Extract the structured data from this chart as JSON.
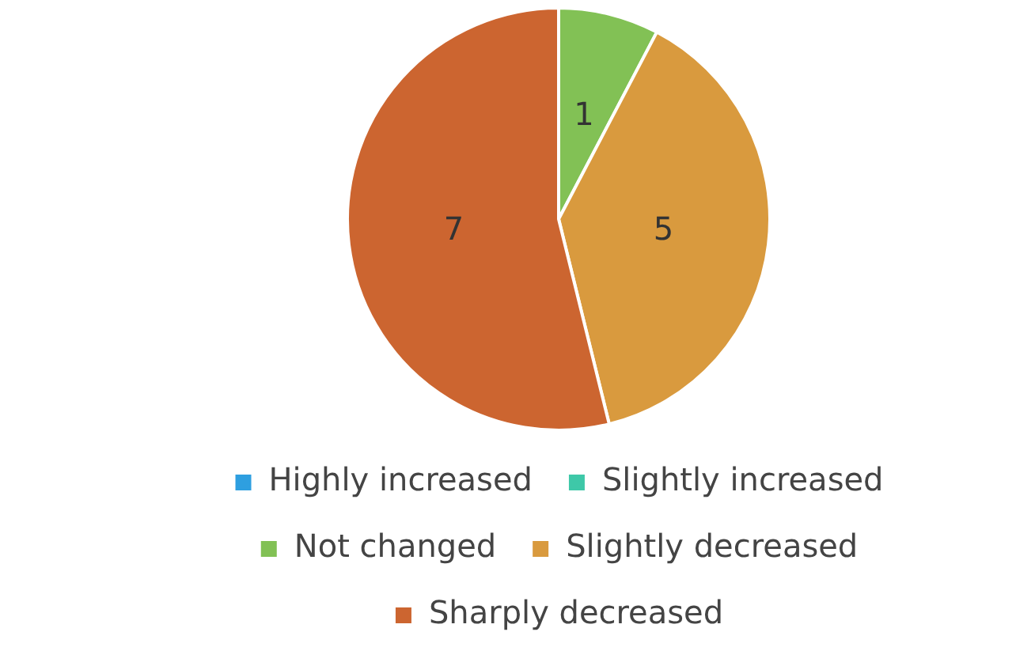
{
  "chart_data": {
    "type": "pie",
    "categories": [
      "Highly increased",
      "Slightly increased",
      "Not changed",
      "Slightly decreased",
      "Sharply decreased"
    ],
    "values": [
      0,
      0,
      1,
      5,
      7
    ],
    "colors": [
      "#2e9fe0",
      "#3ec8a8",
      "#82c155",
      "#d99a3e",
      "#cc6530"
    ],
    "value_labels": [
      null,
      null,
      "1",
      "5",
      "7"
    ],
    "legend": "bottom"
  }
}
